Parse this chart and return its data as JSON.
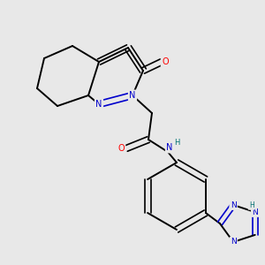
{
  "bg_color": "#e8e8e8",
  "bond_color": "#000000",
  "bond_lw": 1.4,
  "atom_colors": {
    "N": "#0000cc",
    "O": "#ff0000",
    "H": "#007070",
    "C": "#000000"
  },
  "font_size": 6.5,
  "fig_size": [
    3.0,
    3.0
  ],
  "dpi": 100
}
